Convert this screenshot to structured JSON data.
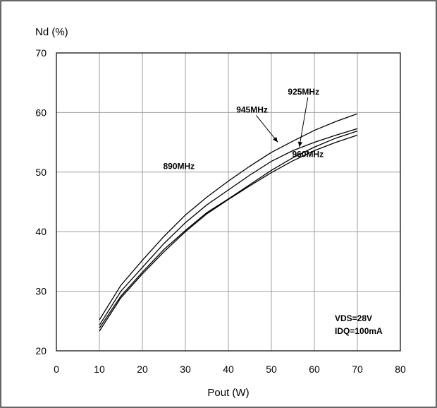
{
  "chart_data": {
    "type": "line",
    "title": "",
    "ylabel": "Nd (%)",
    "xlabel": "Pout (W)",
    "xlim": [
      0,
      80
    ],
    "ylim": [
      20,
      70
    ],
    "xticks": [
      "0",
      "10",
      "20",
      "30",
      "40",
      "50",
      "60",
      "70",
      "80"
    ],
    "yticks": [
      "20",
      "30",
      "40",
      "50",
      "60",
      "70"
    ],
    "grid": true,
    "series": [
      {
        "name": "890MHz",
        "x": [
          10,
          15,
          20,
          25,
          30,
          35,
          40,
          45,
          50,
          55,
          60,
          65,
          70
        ],
        "y": [
          25.2,
          31.0,
          35.2,
          39.2,
          42.8,
          45.8,
          48.5,
          51.0,
          53.3,
          55.2,
          57.0,
          58.5,
          59.8
        ]
      },
      {
        "name": "945MHz",
        "x": [
          10,
          15,
          20,
          25,
          30,
          35,
          40,
          45,
          50,
          55,
          60,
          65,
          70
        ],
        "y": [
          24.3,
          30.0,
          34.0,
          38.0,
          41.5,
          44.5,
          47.0,
          49.5,
          51.8,
          53.6,
          55.0,
          56.2,
          57.3
        ]
      },
      {
        "name": "925MHz",
        "x": [
          10,
          15,
          20,
          25,
          30,
          35,
          40,
          45,
          50,
          55,
          60,
          65,
          70
        ],
        "y": [
          23.8,
          29.2,
          33.2,
          37.0,
          40.2,
          43.2,
          45.5,
          47.9,
          50.3,
          52.4,
          54.2,
          55.7,
          56.9
        ]
      },
      {
        "name": "960MHz",
        "x": [
          10,
          15,
          20,
          25,
          30,
          35,
          40,
          45,
          50,
          55,
          60,
          65,
          70
        ],
        "y": [
          23.3,
          28.9,
          32.9,
          36.6,
          40.0,
          43.0,
          45.4,
          47.7,
          49.9,
          51.9,
          53.6,
          55.0,
          56.2
        ]
      }
    ],
    "labels": [
      {
        "text": "890MHz",
        "x": 28.5,
        "y": 50.5
      },
      {
        "text": "945MHz",
        "x": 45.5,
        "y": 60.0,
        "arrow_to": [
          51.5,
          55.0
        ]
      },
      {
        "text": "925MHz",
        "x": 57.5,
        "y": 63.0,
        "arrow_to": [
          56.5,
          54.2
        ]
      },
      {
        "text": "960MHz",
        "x": 58.5,
        "y": 52.5
      }
    ],
    "annotations": [
      "VDS=28V",
      "IDQ=100mA"
    ]
  }
}
